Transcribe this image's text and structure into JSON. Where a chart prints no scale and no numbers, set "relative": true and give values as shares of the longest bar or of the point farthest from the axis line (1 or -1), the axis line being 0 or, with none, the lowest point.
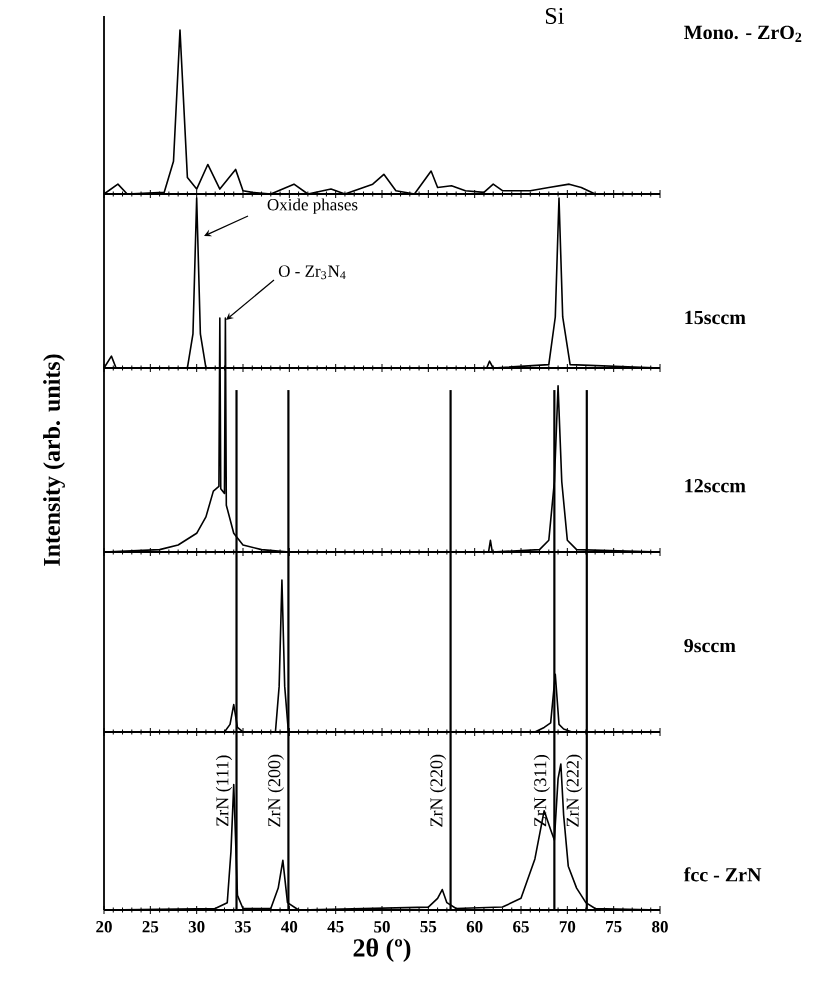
{
  "chart_data": [
    {
      "type": "line",
      "relative": true,
      "xlim": [
        20,
        80
      ],
      "xticks": [
        20,
        25,
        30,
        35,
        40,
        45,
        50,
        55,
        60,
        65,
        70,
        75,
        80
      ],
      "tick_labels": false,
      "annotations": [
        "Si"
      ],
      "series": [
        {
          "name": "Mono. - ZrO$_{2}$",
          "color": "#000000",
          "x": [
            20,
            21.5,
            22.5,
            26.5,
            27.5,
            28.2,
            29,
            30,
            31.2,
            32.5,
            34.2,
            35,
            36,
            38,
            40.5,
            42,
            44.5,
            46,
            49,
            50.2,
            51.5,
            53.5,
            55.3,
            56,
            57.5,
            59,
            61,
            62,
            63,
            66,
            68,
            70.2,
            71.5,
            73,
            80
          ],
          "values": [
            0,
            0.06,
            0,
            0.01,
            0.2,
            1.0,
            0.1,
            0.03,
            0.18,
            0.03,
            0.15,
            0.02,
            0.01,
            0,
            0.06,
            0,
            0.03,
            0,
            0.06,
            0.12,
            0.02,
            0,
            0.14,
            0.04,
            0.05,
            0.02,
            0.01,
            0.06,
            0.02,
            0.02,
            0.04,
            0.06,
            0.04,
            0,
            0
          ]
        }
      ]
    },
    {
      "type": "line",
      "relative": true,
      "xlim": [
        20,
        80
      ],
      "xticks": [
        20,
        25,
        30,
        35,
        40,
        45,
        50,
        55,
        60,
        65,
        70,
        75,
        80
      ],
      "tick_labels": false,
      "annotations": [
        "Oxide phases",
        "O - Zr$_{3}$N$_{4}$"
      ],
      "series": [
        {
          "name": "15sccm",
          "color": "#000000",
          "x": [
            20,
            20.8,
            21.3,
            29,
            29.6,
            30,
            30.4,
            31,
            61.3,
            61.6,
            62,
            68,
            68.7,
            69.1,
            69.5,
            70.3,
            80
          ],
          "values": [
            0,
            0.07,
            0,
            0,
            0.2,
            1.0,
            0.2,
            0,
            0,
            0.04,
            0,
            0.02,
            0.3,
            1.0,
            0.3,
            0.02,
            0
          ]
        }
      ]
    },
    {
      "type": "line",
      "relative": true,
      "xlim": [
        20,
        80
      ],
      "xticks": [
        20,
        25,
        30,
        35,
        40,
        45,
        50,
        55,
        60,
        65,
        70,
        75,
        80
      ],
      "tick_labels": false,
      "ylabel": "Intensity (arb. units)",
      "ref_lines": [
        {
          "axis": "x",
          "value": 34.3
        },
        {
          "axis": "x",
          "value": 39.9
        },
        {
          "axis": "x",
          "value": 57.4
        },
        {
          "axis": "x",
          "value": 68.6
        },
        {
          "axis": "x",
          "value": 72.1
        }
      ],
      "series": [
        {
          "name": "12sccm",
          "color": "#000000",
          "x": [
            20,
            26,
            28,
            30,
            31,
            31.8,
            32.4,
            32.5,
            32.6,
            33.0,
            33.1,
            33.2,
            34,
            35,
            37,
            40,
            61.5,
            61.7,
            61.9,
            67,
            68,
            68.6,
            69,
            69.4,
            70,
            71,
            80
          ],
          "values": [
            0,
            0.01,
            0.03,
            0.08,
            0.15,
            0.26,
            0.28,
            1.0,
            0.27,
            0.25,
            1.0,
            0.2,
            0.08,
            0.03,
            0.01,
            0,
            0,
            0.05,
            0,
            0.01,
            0.05,
            0.3,
            0.71,
            0.3,
            0.05,
            0.01,
            0
          ]
        }
      ]
    },
    {
      "type": "line",
      "relative": true,
      "xlim": [
        20,
        80
      ],
      "xticks": [
        20,
        25,
        30,
        35,
        40,
        45,
        50,
        55,
        60,
        65,
        70,
        75,
        80
      ],
      "tick_labels": false,
      "ref_lines": [
        {
          "axis": "x",
          "value": 34.3
        },
        {
          "axis": "x",
          "value": 39.9
        },
        {
          "axis": "x",
          "value": 57.4
        },
        {
          "axis": "x",
          "value": 68.6
        },
        {
          "axis": "x",
          "value": 72.1
        }
      ],
      "series": [
        {
          "name": "9sccm",
          "color": "#000000",
          "x": [
            20,
            33,
            33.6,
            34,
            34.4,
            35,
            38.5,
            38.9,
            39.2,
            39.5,
            39.9,
            66.5,
            67.5,
            68.2,
            68.7,
            69.1,
            69.6,
            70.5,
            80
          ],
          "values": [
            0,
            0,
            0.05,
            0.18,
            0.03,
            0,
            0,
            0.3,
            1.0,
            0.3,
            0,
            0,
            0.03,
            0.06,
            0.38,
            0.05,
            0.02,
            0,
            0
          ]
        }
      ]
    },
    {
      "type": "line",
      "relative": true,
      "xlim": [
        20,
        80
      ],
      "xticks": [
        20,
        25,
        30,
        35,
        40,
        45,
        50,
        55,
        60,
        65,
        70,
        75,
        80
      ],
      "xlabel": "2θ (º)",
      "ref_lines": [
        {
          "axis": "x",
          "value": 34.3,
          "label": "ZrN (111)"
        },
        {
          "axis": "x",
          "value": 39.9,
          "label": "ZrN (200)"
        },
        {
          "axis": "x",
          "value": 57.4,
          "label": "ZrN (220)"
        },
        {
          "axis": "x",
          "value": 68.6,
          "label": "ZrN (311)"
        },
        {
          "axis": "x",
          "value": 72.1,
          "label": "ZrN (222)"
        }
      ],
      "series": [
        {
          "name": "fcc - ZrN",
          "color": "#000000",
          "x": [
            20,
            32,
            33.3,
            33.7,
            34.0,
            34.4,
            35,
            38,
            38.8,
            39.3,
            39.8,
            41,
            55,
            56,
            56.5,
            57,
            58,
            63,
            65,
            66.5,
            67.5,
            68.2,
            68.6,
            69.0,
            69.3,
            69.6,
            70.1,
            71,
            72,
            73,
            80
          ],
          "values": [
            0,
            0.01,
            0.05,
            0.4,
            0.86,
            0.1,
            0.01,
            0.01,
            0.15,
            0.34,
            0.05,
            0,
            0.02,
            0.08,
            0.14,
            0.05,
            0.01,
            0.02,
            0.08,
            0.35,
            0.68,
            0.55,
            0.48,
            0.9,
            1.0,
            0.65,
            0.3,
            0.15,
            0.05,
            0.01,
            0
          ]
        }
      ]
    }
  ]
}
